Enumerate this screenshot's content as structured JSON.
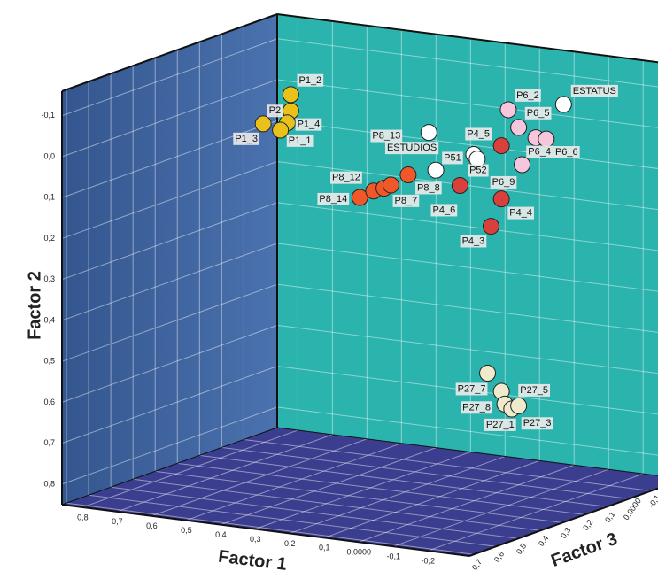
{
  "chart_data": {
    "type": "scatter3d",
    "x_label": "Factor 1",
    "y_label": "Factor 2",
    "z_label": "Factor 3",
    "xlim": [
      0.86,
      -0.32
    ],
    "ylim": [
      0.85,
      -0.16
    ],
    "zlim": [
      0.72,
      -0.25
    ],
    "xticks": [
      {
        "value": 0.8,
        "label": "0,8"
      },
      {
        "value": 0.7,
        "label": "0,7"
      },
      {
        "value": 0.6,
        "label": "0,6"
      },
      {
        "value": 0.5,
        "label": "0,5"
      },
      {
        "value": 0.4,
        "label": "0,4"
      },
      {
        "value": 0.3,
        "label": "0,3"
      },
      {
        "value": 0.2,
        "label": "0,2"
      },
      {
        "value": 0.1,
        "label": "0,1"
      },
      {
        "value": 0,
        "label": "0,0000"
      },
      {
        "value": -0.1,
        "label": "-0,1"
      },
      {
        "value": -0.2,
        "label": "-0,2"
      }
    ],
    "yticks": [
      {
        "value": -0.1,
        "label": "-0,1"
      },
      {
        "value": 0,
        "label": "0,0"
      },
      {
        "value": 0.1,
        "label": "0,1"
      },
      {
        "value": 0.2,
        "label": "0,2"
      },
      {
        "value": 0.3,
        "label": "0,3"
      },
      {
        "value": 0.4,
        "label": "0,4"
      },
      {
        "value": 0.5,
        "label": "0,5"
      },
      {
        "value": 0.6,
        "label": "0,6"
      },
      {
        "value": 0.7,
        "label": "0,7"
      },
      {
        "value": 0.8,
        "label": "0,8"
      }
    ],
    "zticks": [
      {
        "value": 0.7,
        "label": "0,7"
      },
      {
        "value": 0.6,
        "label": "0,6"
      },
      {
        "value": 0.5,
        "label": "0,5"
      },
      {
        "value": 0.4,
        "label": "0,4"
      },
      {
        "value": 0.3,
        "label": "0,3"
      },
      {
        "value": 0.2,
        "label": "0,2"
      },
      {
        "value": 0.1,
        "label": "0,1"
      },
      {
        "value": 0,
        "label": "0,0000"
      },
      {
        "value": -0.1,
        "label": "-0,1"
      }
    ],
    "grid": true,
    "series": [
      {
        "color": "#e8c21a",
        "labels": [
          "P1_2",
          "P2",
          "P1_4",
          "P1_3",
          "P1_1"
        ],
        "x": [
          0.57,
          0.57,
          0.58,
          0.65,
          0.6
        ],
        "y": [
          -0.07,
          -0.03,
          0.0,
          0.01,
          0.02
        ],
        "z": [
          0.14,
          0.14,
          0.14,
          0.14,
          0.14
        ]
      },
      {
        "color": "#f0582a",
        "labels": [
          "P8_14",
          "P8_12",
          null,
          "P8_7",
          "P8_8"
        ],
        "x": [
          0.37,
          0.33,
          0.3,
          0.28,
          0.23
        ],
        "y": [
          0.16,
          0.14,
          0.13,
          0.12,
          0.09
        ],
        "z": [
          0.14,
          0.14,
          0.14,
          0.14,
          0.14
        ]
      },
      {
        "color": "#ffffff",
        "labels": [
          "P8_13",
          "ESTUDIOS",
          "P51",
          "P52",
          "ESTATUS"
        ],
        "x": [
          0.17,
          0.15,
          0.04,
          0.03,
          -0.22
        ],
        "y": [
          -0.02,
          0.07,
          0.02,
          0.03,
          -0.13
        ],
        "z": [
          0.14,
          0.14,
          0.14,
          0.14,
          0.14
        ]
      },
      {
        "color": "#d9403c",
        "labels": [
          "P4_5",
          "P4_6",
          "P4_4",
          "P4_3"
        ],
        "x": [
          -0.04,
          0.08,
          -0.04,
          -0.01
        ],
        "y": [
          -0.01,
          0.1,
          0.12,
          0.19
        ],
        "z": [
          0.14,
          0.14,
          0.14,
          0.14
        ]
      },
      {
        "color": "#f6c6dc",
        "labels": [
          "P6_2",
          "P6_5",
          "P6_4",
          "P6_6",
          "P6_9"
        ],
        "x": [
          -0.06,
          -0.09,
          -0.14,
          -0.17,
          -0.1
        ],
        "y": [
          -0.1,
          -0.06,
          -0.04,
          -0.04,
          0.03
        ],
        "z": [
          0.14,
          0.14,
          0.14,
          0.14,
          0.14
        ]
      },
      {
        "color": "#efeacb",
        "labels": [
          "P27_7",
          "P27_5",
          "P27_8",
          "P27_1",
          "P27_3"
        ],
        "x": [
          0.0,
          -0.04,
          -0.05,
          -0.07,
          -0.09
        ],
        "y": [
          0.55,
          0.59,
          0.62,
          0.63,
          0.62
        ],
        "z": [
          0.14,
          0.14,
          0.14,
          0.14,
          0.14
        ]
      }
    ]
  }
}
